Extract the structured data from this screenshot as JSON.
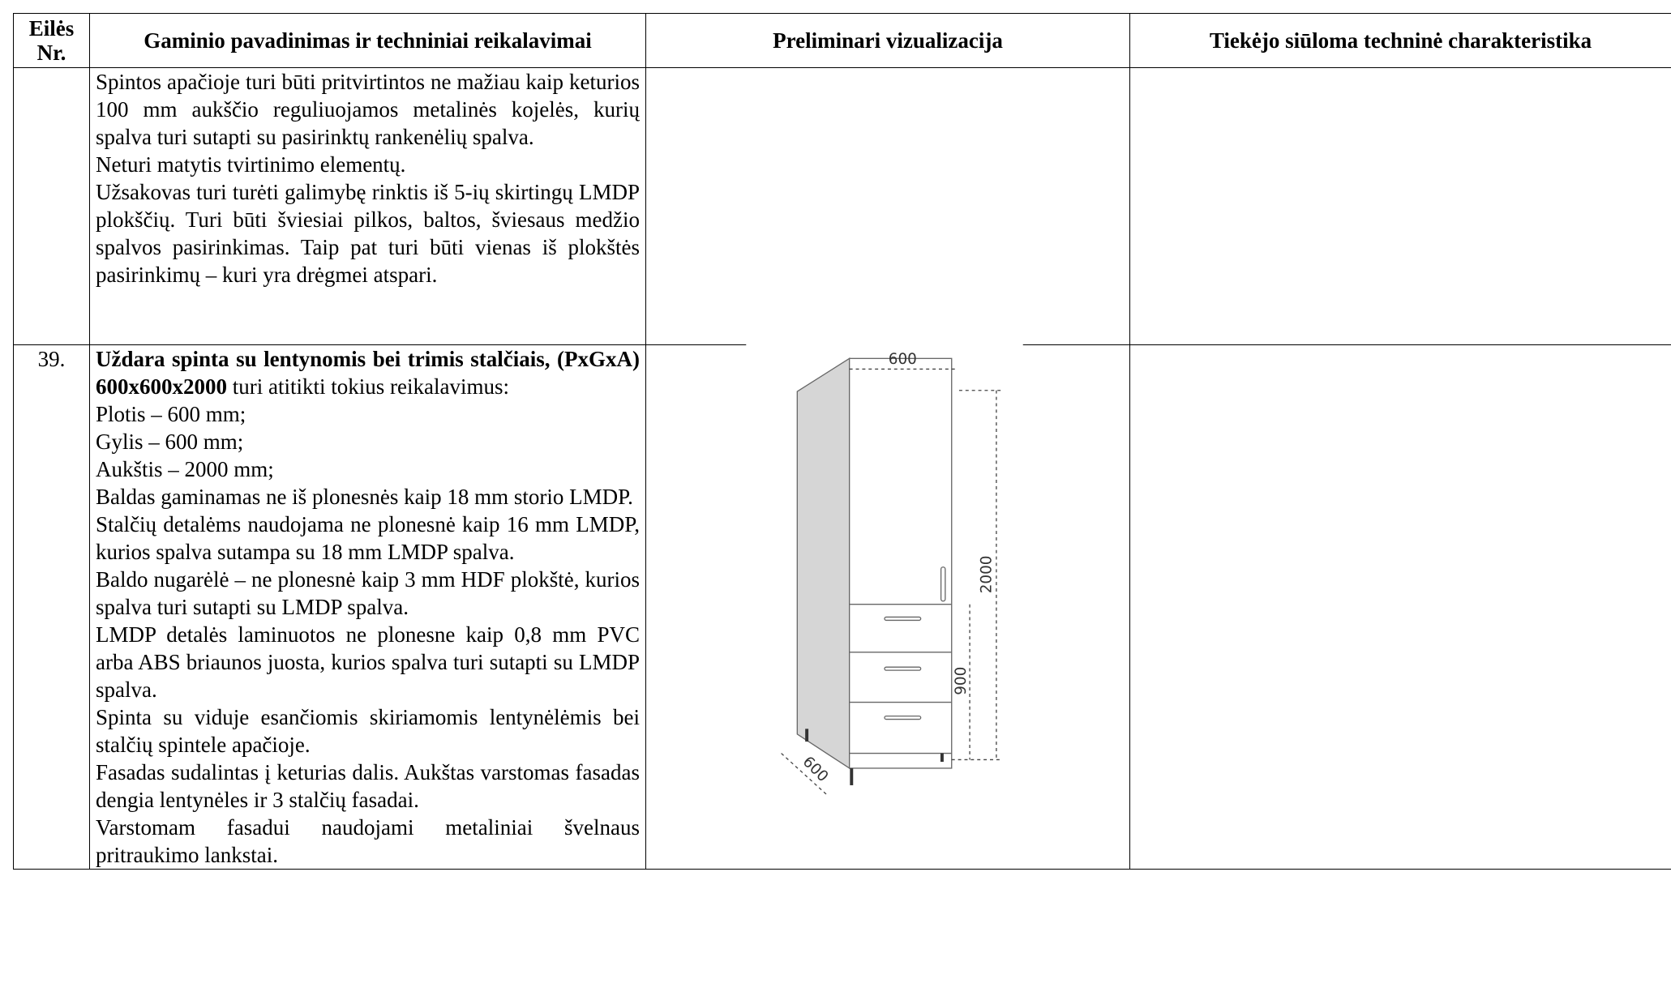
{
  "table": {
    "headers": [
      "Eilės Nr.",
      "Gaminio pavadinimas ir techniniai reikalavimai",
      "Preliminari vizualizacija",
      "Tiekėjo siūloma techninė charakteristika"
    ],
    "rows": [
      {
        "description": [
          "Spintos apačioje turi būti pritvirtintos ne mažiau kaip keturios 100 mm aukščio reguliuojamos metalinės kojelės, kurių spalva turi sutapti su pasirinktų rankenėlių spalva.",
          "Neturi matytis tvirtinimo elementų.",
          "Užsakovas turi turėti galimybę rinktis iš 5-ių skirtingų LMDP plokščių. Turi būti šviesiai pilkos, baltos, šviesaus medžio spalvos pasirinkimas. Taip pat turi būti vienas iš plokštės pasirinkimų – kuri yra drėgmei atspari."
        ]
      },
      {
        "number": "39.",
        "title_bold": "Uždara spinta su lentynomis bei trimis stalčiais, (PxGxA) 600x600x2000",
        "title_rest": " turi atitikti tokius reikalavimus:",
        "description": [
          "Plotis – 600 mm;",
          "Gylis – 600 mm;",
          "Aukštis – 2000 mm;",
          "Baldas gaminamas ne iš plonesnės kaip 18 mm storio LMDP.",
          "Stalčių detalėms naudojama ne plonesnė kaip 16 mm LMDP, kurios spalva sutampa su 18 mm LMDP spalva.",
          "Baldo nugarėlė – ne plonesnė kaip 3 mm HDF plokštė, kurios spalva turi sutapti su LMDP spalva.",
          "LMDP detalės laminuotos ne plonesne kaip 0,8 mm PVC arba ABS briaunos juosta, kurios spalva turi sutapti su LMDP spalva.",
          "Spinta su viduje esančiomis skiriamomis lentynėlėmis bei stalčių spintele apačioje.",
          "Fasadas sudalintas į keturias dalis. Aukštas varstomas fasadas dengia lentynėles ir  3 stalčių fasadai.",
          "Varstomam fasadui naudojami metaliniai švelnaus pritraukimo lankstai."
        ]
      }
    ]
  },
  "drawing": {
    "width_label": "600",
    "height_label": "2000",
    "drawer_height_label": "900",
    "depth_label": "600"
  }
}
